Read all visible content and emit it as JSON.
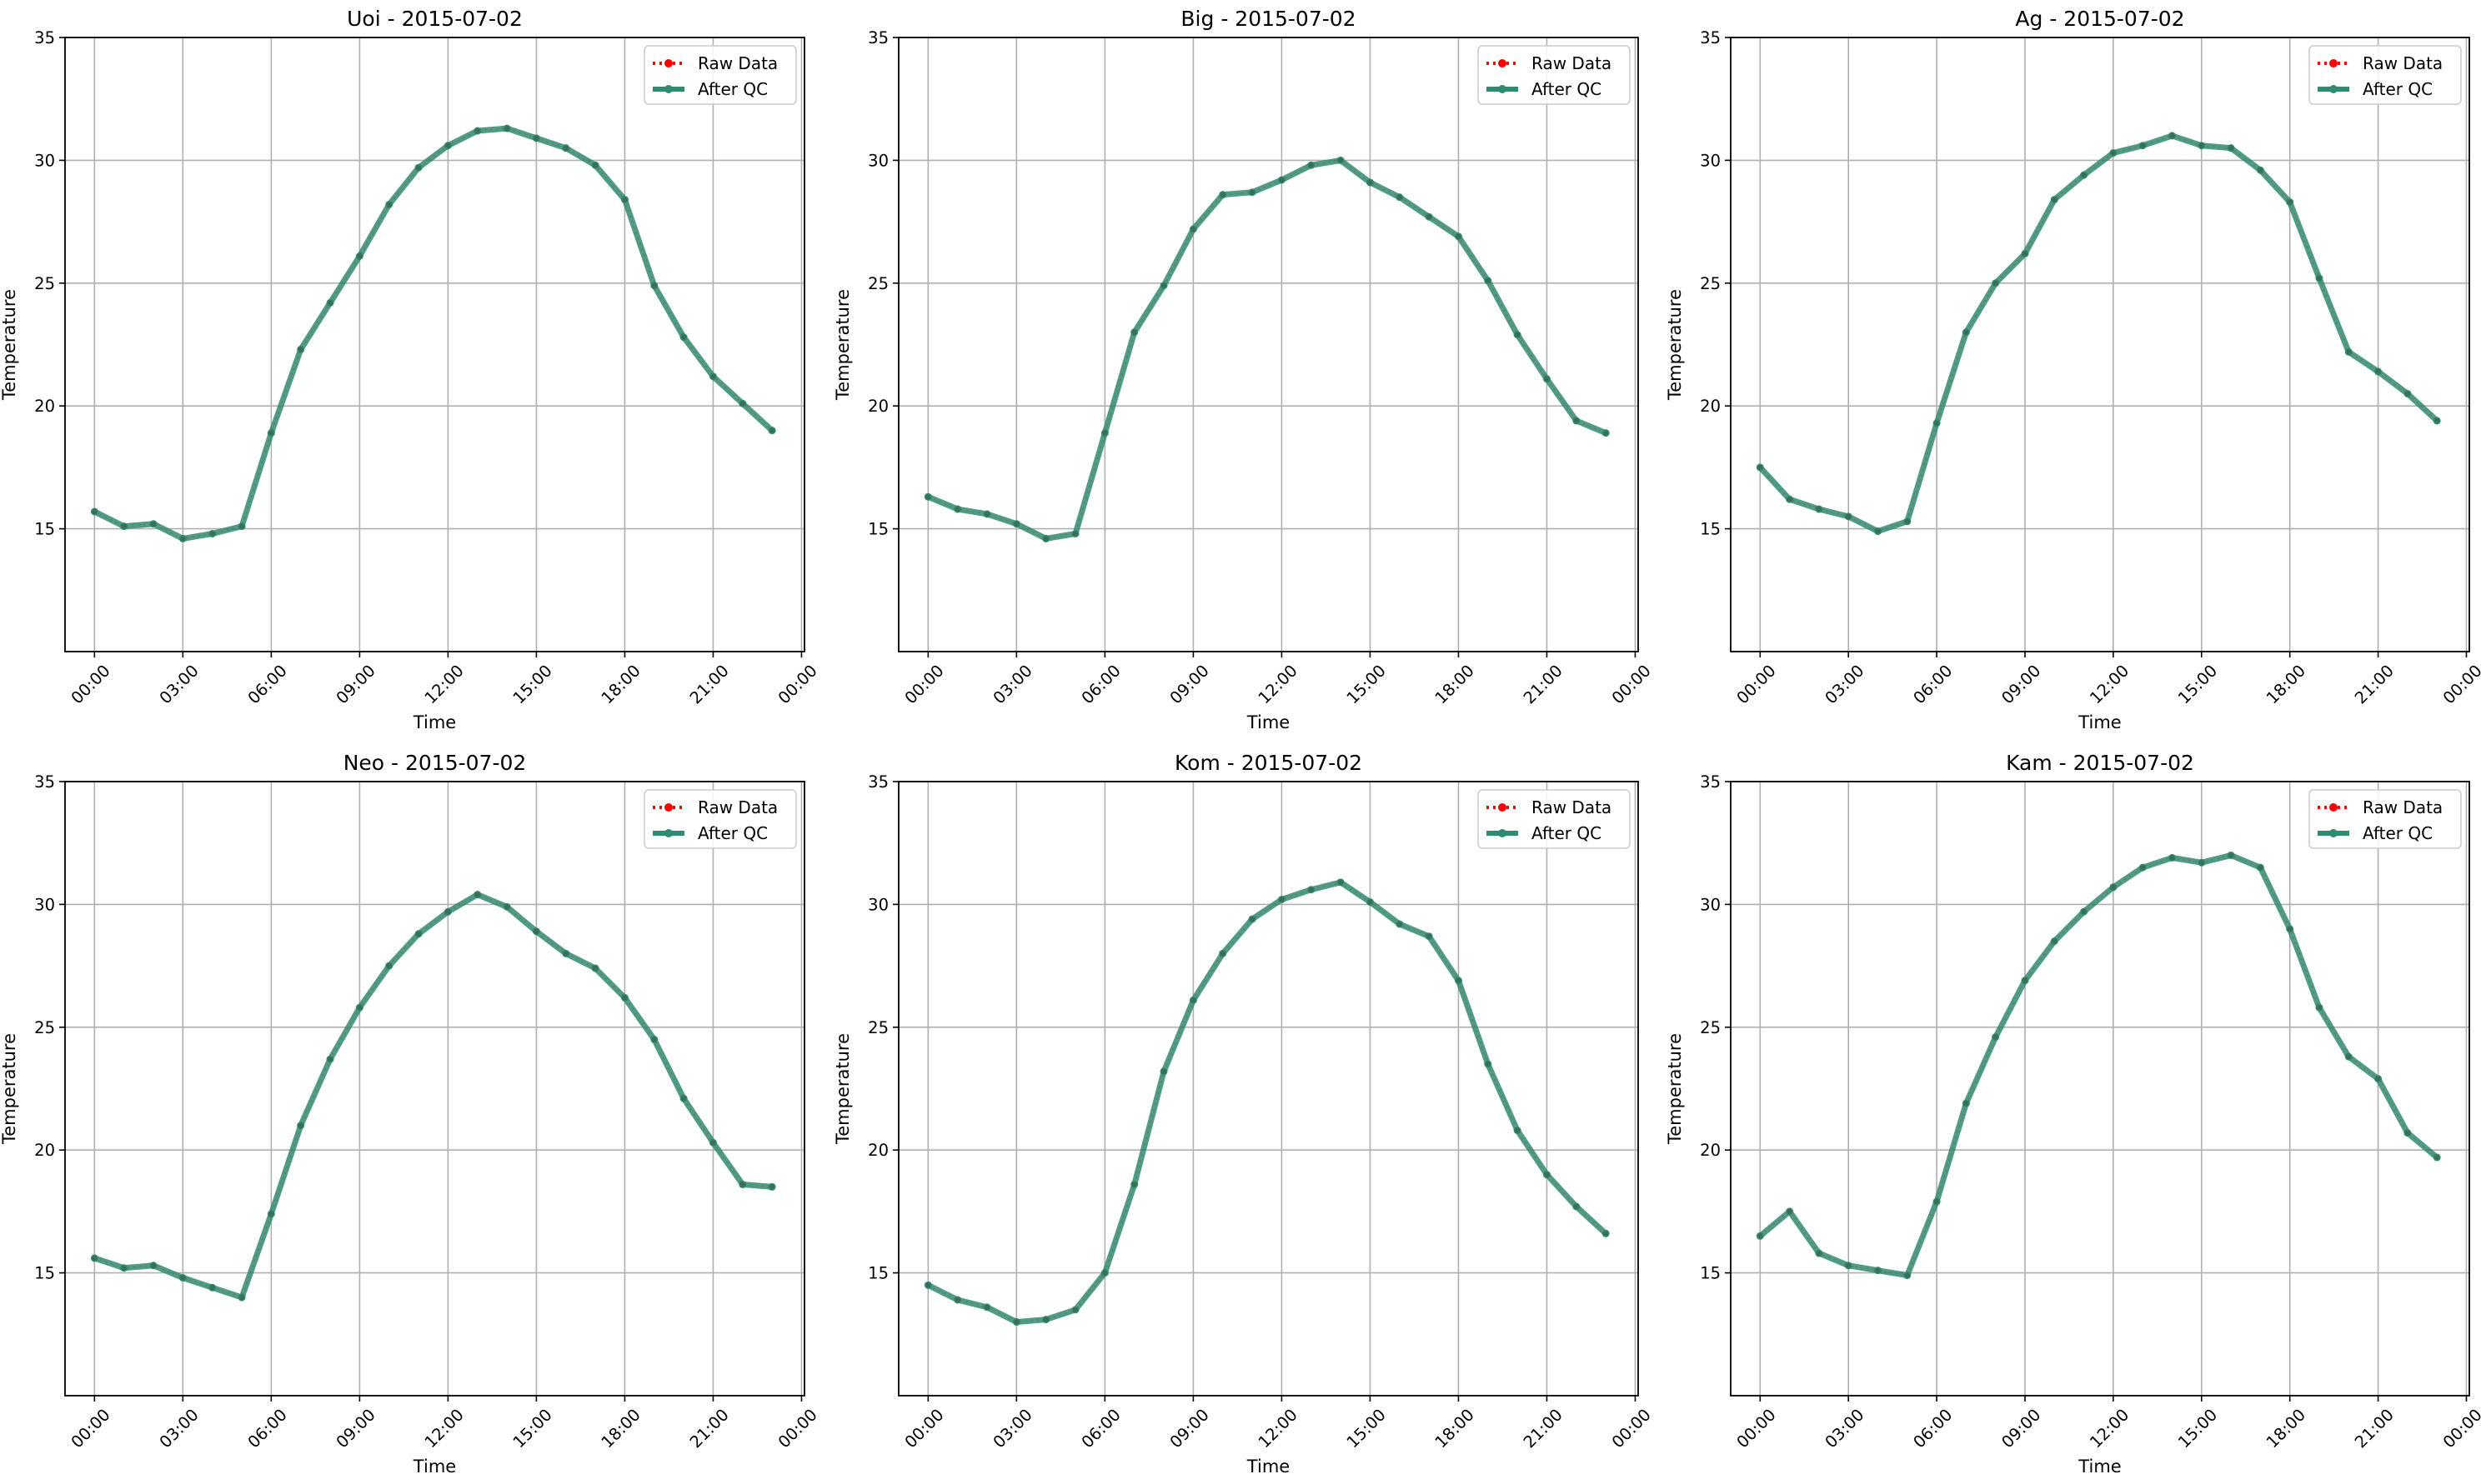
{
  "figure": {
    "colors": {
      "raw": "#ff0000",
      "qc": "#2e8b71",
      "grid": "#b0b0b0"
    },
    "legend": {
      "raw_label": "Raw Data",
      "qc_label": "After QC",
      "position": "top-right"
    }
  },
  "chart_data": [
    {
      "type": "line",
      "title": "Uoi - 2015-07-02",
      "xlabel": "Time",
      "ylabel": "Temperature",
      "ylim": [
        10,
        35
      ],
      "xlim": [
        "2015-07-02 00:00",
        "2015-07-03 00:00"
      ],
      "yticks": [
        "15",
        "20",
        "25",
        "30",
        "35"
      ],
      "xticks": [
        "00:00",
        "03:00",
        "06:00",
        "09:00",
        "12:00",
        "15:00",
        "18:00",
        "21:00",
        "00:00"
      ],
      "grid": true,
      "x": [
        "00:00",
        "01:00",
        "02:00",
        "03:00",
        "04:00",
        "05:00",
        "06:00",
        "07:00",
        "08:00",
        "09:00",
        "10:00",
        "11:00",
        "12:00",
        "13:00",
        "14:00",
        "15:00",
        "16:00",
        "17:00",
        "18:00",
        "19:00",
        "20:00",
        "21:00",
        "22:00",
        "23:00"
      ],
      "series": [
        {
          "name": "Raw Data",
          "values": [
            15.7,
            15.1,
            15.2,
            14.6,
            14.8,
            15.1,
            18.9,
            22.3,
            24.2,
            26.1,
            28.2,
            29.7,
            30.6,
            31.2,
            31.3,
            30.9,
            30.5,
            29.8,
            28.4,
            24.9,
            22.8,
            21.2,
            20.1,
            19.0
          ]
        },
        {
          "name": "After QC",
          "values": [
            15.7,
            15.1,
            15.2,
            14.6,
            14.8,
            15.1,
            18.9,
            22.3,
            24.2,
            26.1,
            28.2,
            29.7,
            30.6,
            31.2,
            31.3,
            30.9,
            30.5,
            29.8,
            28.4,
            24.9,
            22.8,
            21.2,
            20.1,
            19.0
          ]
        }
      ]
    },
    {
      "type": "line",
      "title": "Big - 2015-07-02",
      "xlabel": "Time",
      "ylabel": "Temperature",
      "ylim": [
        10,
        35
      ],
      "xlim": [
        "2015-07-02 00:00",
        "2015-07-03 00:00"
      ],
      "yticks": [
        "15",
        "20",
        "25",
        "30",
        "35"
      ],
      "xticks": [
        "00:00",
        "03:00",
        "06:00",
        "09:00",
        "12:00",
        "15:00",
        "18:00",
        "21:00",
        "00:00"
      ],
      "grid": true,
      "x": [
        "00:00",
        "01:00",
        "02:00",
        "03:00",
        "04:00",
        "05:00",
        "06:00",
        "07:00",
        "08:00",
        "09:00",
        "10:00",
        "11:00",
        "12:00",
        "13:00",
        "14:00",
        "15:00",
        "16:00",
        "17:00",
        "18:00",
        "19:00",
        "20:00",
        "21:00",
        "22:00",
        "23:00"
      ],
      "series": [
        {
          "name": "Raw Data",
          "values": [
            16.3,
            15.8,
            15.6,
            15.2,
            14.6,
            14.8,
            18.9,
            23.0,
            24.9,
            27.2,
            28.6,
            28.7,
            29.2,
            29.8,
            30.0,
            29.1,
            28.5,
            27.7,
            26.9,
            25.1,
            22.9,
            21.1,
            19.4,
            18.9
          ]
        },
        {
          "name": "After QC",
          "values": [
            16.3,
            15.8,
            15.6,
            15.2,
            14.6,
            14.8,
            18.9,
            23.0,
            24.9,
            27.2,
            28.6,
            28.7,
            29.2,
            29.8,
            30.0,
            29.1,
            28.5,
            27.7,
            26.9,
            25.1,
            22.9,
            21.1,
            19.4,
            18.9
          ]
        }
      ]
    },
    {
      "type": "line",
      "title": "Ag - 2015-07-02",
      "xlabel": "Time",
      "ylabel": "Temperature",
      "ylim": [
        10,
        35
      ],
      "xlim": [
        "2015-07-02 00:00",
        "2015-07-03 00:00"
      ],
      "yticks": [
        "15",
        "20",
        "25",
        "30",
        "35"
      ],
      "xticks": [
        "00:00",
        "03:00",
        "06:00",
        "09:00",
        "12:00",
        "15:00",
        "18:00",
        "21:00",
        "00:00"
      ],
      "grid": true,
      "x": [
        "00:00",
        "01:00",
        "02:00",
        "03:00",
        "04:00",
        "05:00",
        "06:00",
        "07:00",
        "08:00",
        "09:00",
        "10:00",
        "11:00",
        "12:00",
        "13:00",
        "14:00",
        "15:00",
        "16:00",
        "17:00",
        "18:00",
        "19:00",
        "20:00",
        "21:00",
        "22:00",
        "23:00"
      ],
      "series": [
        {
          "name": "Raw Data",
          "values": [
            17.5,
            16.2,
            15.8,
            15.5,
            14.9,
            15.3,
            19.3,
            23.0,
            25.0,
            26.2,
            28.4,
            29.4,
            30.3,
            30.6,
            31.0,
            30.6,
            30.5,
            29.6,
            28.3,
            25.2,
            22.2,
            21.4,
            20.5,
            19.4
          ]
        },
        {
          "name": "After QC",
          "values": [
            17.5,
            16.2,
            15.8,
            15.5,
            14.9,
            15.3,
            19.3,
            23.0,
            25.0,
            26.2,
            28.4,
            29.4,
            30.3,
            30.6,
            31.0,
            30.6,
            30.5,
            29.6,
            28.3,
            25.2,
            22.2,
            21.4,
            20.5,
            19.4
          ]
        }
      ]
    },
    {
      "type": "line",
      "title": "Neo - 2015-07-02",
      "xlabel": "Time",
      "ylabel": "Temperature",
      "ylim": [
        10,
        35
      ],
      "xlim": [
        "2015-07-02 00:00",
        "2015-07-03 00:00"
      ],
      "yticks": [
        "15",
        "20",
        "25",
        "30",
        "35"
      ],
      "xticks": [
        "00:00",
        "03:00",
        "06:00",
        "09:00",
        "12:00",
        "15:00",
        "18:00",
        "21:00",
        "00:00"
      ],
      "grid": true,
      "x": [
        "00:00",
        "01:00",
        "02:00",
        "03:00",
        "04:00",
        "05:00",
        "06:00",
        "07:00",
        "08:00",
        "09:00",
        "10:00",
        "11:00",
        "12:00",
        "13:00",
        "14:00",
        "15:00",
        "16:00",
        "17:00",
        "18:00",
        "19:00",
        "20:00",
        "21:00",
        "22:00",
        "23:00"
      ],
      "series": [
        {
          "name": "Raw Data",
          "values": [
            15.6,
            15.2,
            15.3,
            14.8,
            14.4,
            14.0,
            17.4,
            21.0,
            23.7,
            25.8,
            27.5,
            28.8,
            29.7,
            30.4,
            29.9,
            28.9,
            28.0,
            27.4,
            26.2,
            24.5,
            22.1,
            20.3,
            18.6,
            18.5
          ]
        },
        {
          "name": "After QC",
          "values": [
            15.6,
            15.2,
            15.3,
            14.8,
            14.4,
            14.0,
            17.4,
            21.0,
            23.7,
            25.8,
            27.5,
            28.8,
            29.7,
            30.4,
            29.9,
            28.9,
            28.0,
            27.4,
            26.2,
            24.5,
            22.1,
            20.3,
            18.6,
            18.5
          ]
        }
      ]
    },
    {
      "type": "line",
      "title": "Kom - 2015-07-02",
      "xlabel": "Time",
      "ylabel": "Temperature",
      "ylim": [
        10,
        35
      ],
      "xlim": [
        "2015-07-02 00:00",
        "2015-07-03 00:00"
      ],
      "yticks": [
        "15",
        "20",
        "25",
        "30",
        "35"
      ],
      "xticks": [
        "00:00",
        "03:00",
        "06:00",
        "09:00",
        "12:00",
        "15:00",
        "18:00",
        "21:00",
        "00:00"
      ],
      "grid": true,
      "x": [
        "00:00",
        "01:00",
        "02:00",
        "03:00",
        "04:00",
        "05:00",
        "06:00",
        "07:00",
        "08:00",
        "09:00",
        "10:00",
        "11:00",
        "12:00",
        "13:00",
        "14:00",
        "15:00",
        "16:00",
        "17:00",
        "18:00",
        "19:00",
        "20:00",
        "21:00",
        "22:00",
        "23:00"
      ],
      "series": [
        {
          "name": "Raw Data",
          "values": [
            14.5,
            13.9,
            13.6,
            13.0,
            13.1,
            13.5,
            15.0,
            18.6,
            23.2,
            26.1,
            28.0,
            29.4,
            30.2,
            30.6,
            30.9,
            30.1,
            29.2,
            28.7,
            26.9,
            23.5,
            20.8,
            19.0,
            17.7,
            16.6
          ]
        },
        {
          "name": "After QC",
          "values": [
            14.5,
            13.9,
            13.6,
            13.0,
            13.1,
            13.5,
            15.0,
            18.6,
            23.2,
            26.1,
            28.0,
            29.4,
            30.2,
            30.6,
            30.9,
            30.1,
            29.2,
            28.7,
            26.9,
            23.5,
            20.8,
            19.0,
            17.7,
            16.6
          ]
        }
      ]
    },
    {
      "type": "line",
      "title": "Kam - 2015-07-02",
      "xlabel": "Time",
      "ylabel": "Temperature",
      "ylim": [
        10,
        35
      ],
      "xlim": [
        "2015-07-02 00:00",
        "2015-07-03 00:00"
      ],
      "yticks": [
        "15",
        "20",
        "25",
        "30",
        "35"
      ],
      "xticks": [
        "00:00",
        "03:00",
        "06:00",
        "09:00",
        "12:00",
        "15:00",
        "18:00",
        "21:00",
        "00:00"
      ],
      "grid": true,
      "x": [
        "00:00",
        "01:00",
        "02:00",
        "03:00",
        "04:00",
        "05:00",
        "06:00",
        "07:00",
        "08:00",
        "09:00",
        "10:00",
        "11:00",
        "12:00",
        "13:00",
        "14:00",
        "15:00",
        "16:00",
        "17:00",
        "18:00",
        "19:00",
        "20:00",
        "21:00",
        "22:00",
        "23:00"
      ],
      "series": [
        {
          "name": "Raw Data",
          "values": [
            16.5,
            17.5,
            15.8,
            15.3,
            15.1,
            14.9,
            17.9,
            21.9,
            24.6,
            26.9,
            28.5,
            29.7,
            30.7,
            31.5,
            31.9,
            31.7,
            32.0,
            31.5,
            29.0,
            25.8,
            23.8,
            22.9,
            20.7,
            19.7
          ]
        },
        {
          "name": "After QC",
          "values": [
            16.5,
            17.5,
            15.8,
            15.3,
            15.1,
            14.9,
            17.9,
            21.9,
            24.6,
            26.9,
            28.5,
            29.7,
            30.7,
            31.5,
            31.9,
            31.7,
            32.0,
            31.5,
            29.0,
            25.8,
            23.8,
            22.9,
            20.7,
            19.7
          ]
        }
      ]
    }
  ]
}
